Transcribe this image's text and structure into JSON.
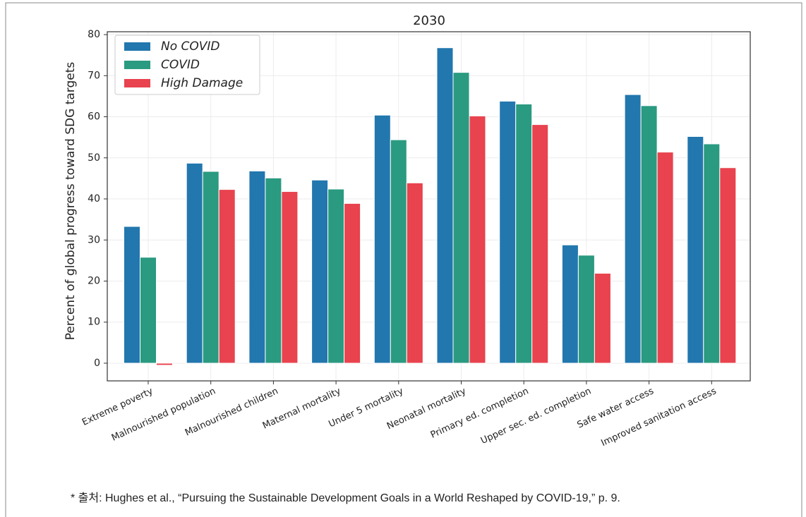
{
  "chart_data": {
    "type": "bar",
    "title": "2030",
    "y_label": "Percent of global progress toward SDG targets",
    "categories": [
      "Extreme poverty",
      "Malnourished population",
      "Malnourished children",
      "Maternal mortality",
      "Under 5 mortality",
      "Neonatal mortality",
      "Primary ed. completion",
      "Upper sec. ed. completion",
      "Safe water access",
      "Improved sanitation access"
    ],
    "series": [
      {
        "name": "No COVID",
        "color": "#2277ae",
        "values": [
          33.3,
          48.7,
          46.8,
          44.6,
          60.4,
          76.8,
          63.8,
          28.8,
          65.4,
          55.2
        ]
      },
      {
        "name": "COVID",
        "color": "#2a9a80",
        "values": [
          25.8,
          46.7,
          45.1,
          42.4,
          54.4,
          70.8,
          63.1,
          26.3,
          62.7,
          53.4
        ]
      },
      {
        "name": "High Damage",
        "color": "#e8434e",
        "values": [
          -0.5,
          42.3,
          41.8,
          38.9,
          43.9,
          60.2,
          58.1,
          21.9,
          51.4,
          47.6
        ]
      }
    ],
    "ylim": [
      -4.3,
      80.7
    ],
    "yticks": [
      0,
      10,
      20,
      30,
      40,
      50,
      60,
      70,
      80
    ],
    "grid": true,
    "legend": "upper left",
    "source": "* 출처: Hughes et al., “Pursuing the Sustainable Development Goals in a World Reshaped by COVID-19,” p. 9."
  }
}
